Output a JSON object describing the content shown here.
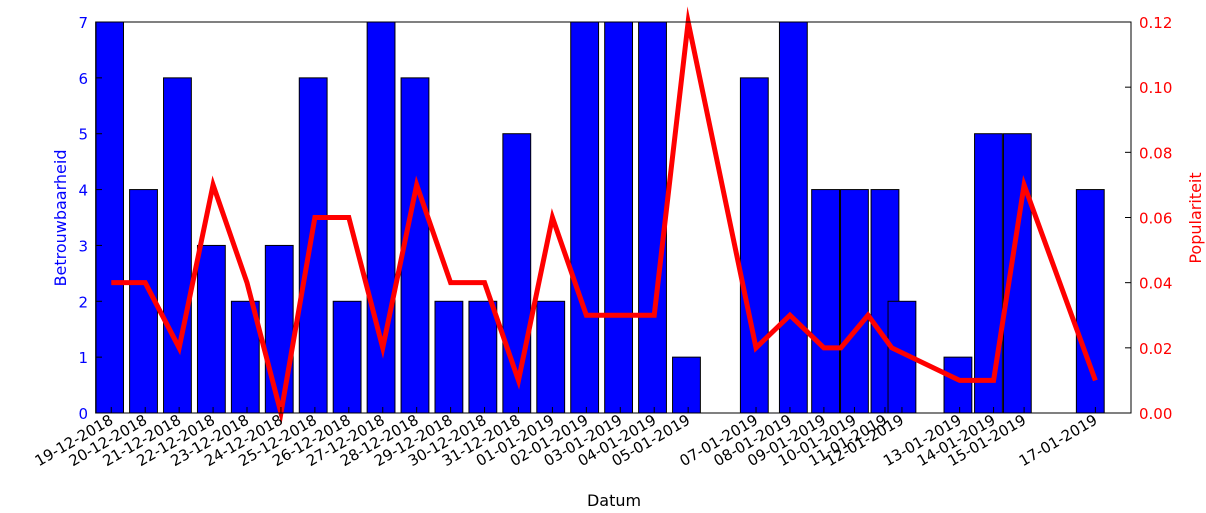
{
  "chart_data": {
    "type": "bar",
    "xlabel": "Datum",
    "x_ticks": [
      {
        "label": "19-12-2018",
        "x": 1
      },
      {
        "label": "20-12-2018",
        "x": 2
      },
      {
        "label": "21-12-2018",
        "x": 3
      },
      {
        "label": "22-12-2018",
        "x": 4
      },
      {
        "label": "23-12-2018",
        "x": 5
      },
      {
        "label": "24-12-2018",
        "x": 6
      },
      {
        "label": "25-12-2018",
        "x": 7
      },
      {
        "label": "26-12-2018",
        "x": 8
      },
      {
        "label": "27-12-2018",
        "x": 9
      },
      {
        "label": "28-12-2018",
        "x": 10
      },
      {
        "label": "29-12-2018",
        "x": 11
      },
      {
        "label": "30-12-2018",
        "x": 12
      },
      {
        "label": "31-12-2018",
        "x": 13
      },
      {
        "label": "01-01-2019",
        "x": 14
      },
      {
        "label": "02-01-2019",
        "x": 15
      },
      {
        "label": "03-01-2019",
        "x": 16
      },
      {
        "label": "04-01-2019",
        "x": 17
      },
      {
        "label": "05-01-2019",
        "x": 18
      },
      {
        "label": "07-01-2019",
        "x": 20
      },
      {
        "label": "08-01-2019",
        "x": 21
      },
      {
        "label": "09-01-2019",
        "x": 22
      },
      {
        "label": "10-01-2019",
        "x": 22.9
      },
      {
        "label": "11-01-2019",
        "x": 23.8
      },
      {
        "label": "12-01-2019",
        "x": 24.3
      },
      {
        "label": "13-01-2019",
        "x": 26
      },
      {
        "label": "14-01-2019",
        "x": 27
      },
      {
        "label": "15-01-2019",
        "x": 27.9
      },
      {
        "label": "17-01-2019",
        "x": 30
      }
    ],
    "xlim": [
      0.55,
      31.05
    ],
    "bar_width": 0.82,
    "series": [
      {
        "name": "Betrouwbaarheid",
        "kind": "bar",
        "axis": "left",
        "color": "#0000ff",
        "points": [
          {
            "x": 0.95,
            "y": 7
          },
          {
            "x": 1.95,
            "y": 4
          },
          {
            "x": 2.95,
            "y": 6
          },
          {
            "x": 3.95,
            "y": 3
          },
          {
            "x": 4.95,
            "y": 2
          },
          {
            "x": 5.95,
            "y": 3
          },
          {
            "x": 6.95,
            "y": 6
          },
          {
            "x": 7.95,
            "y": 2
          },
          {
            "x": 8.95,
            "y": 7
          },
          {
            "x": 9.95,
            "y": 6
          },
          {
            "x": 10.95,
            "y": 2
          },
          {
            "x": 11.95,
            "y": 2
          },
          {
            "x": 12.95,
            "y": 5
          },
          {
            "x": 13.95,
            "y": 2
          },
          {
            "x": 14.95,
            "y": 7
          },
          {
            "x": 15.95,
            "y": 7
          },
          {
            "x": 16.95,
            "y": 7
          },
          {
            "x": 17.95,
            "y": 1
          },
          {
            "x": 19.95,
            "y": 6
          },
          {
            "x": 21.1,
            "y": 7
          },
          {
            "x": 22.05,
            "y": 4
          },
          {
            "x": 22.9,
            "y": 4
          },
          {
            "x": 23.8,
            "y": 4
          },
          {
            "x": 24.3,
            "y": 2
          },
          {
            "x": 25.95,
            "y": 1
          },
          {
            "x": 26.85,
            "y": 5
          },
          {
            "x": 27.7,
            "y": 5
          },
          {
            "x": 29.85,
            "y": 4
          }
        ]
      },
      {
        "name": "Populariteit",
        "kind": "line",
        "axis": "right",
        "color": "#ff0000",
        "points": [
          {
            "x": 1,
            "y": 0.04
          },
          {
            "x": 2,
            "y": 0.04
          },
          {
            "x": 3,
            "y": 0.02
          },
          {
            "x": 4,
            "y": 0.07
          },
          {
            "x": 5,
            "y": 0.04
          },
          {
            "x": 6,
            "y": 0.0
          },
          {
            "x": 7,
            "y": 0.06
          },
          {
            "x": 8,
            "y": 0.06
          },
          {
            "x": 9,
            "y": 0.02
          },
          {
            "x": 10,
            "y": 0.07
          },
          {
            "x": 11,
            "y": 0.04
          },
          {
            "x": 12,
            "y": 0.04
          },
          {
            "x": 13,
            "y": 0.01
          },
          {
            "x": 14,
            "y": 0.06
          },
          {
            "x": 15,
            "y": 0.03
          },
          {
            "x": 16,
            "y": 0.03
          },
          {
            "x": 17,
            "y": 0.03
          },
          {
            "x": 18,
            "y": 0.12
          },
          {
            "x": 20,
            "y": 0.02
          },
          {
            "x": 21,
            "y": 0.03
          },
          {
            "x": 22,
            "y": 0.02
          },
          {
            "x": 22.5,
            "y": 0.02
          },
          {
            "x": 23.3,
            "y": 0.03
          },
          {
            "x": 24,
            "y": 0.02
          },
          {
            "x": 26,
            "y": 0.01
          },
          {
            "x": 27,
            "y": 0.01
          },
          {
            "x": 27.9,
            "y": 0.07
          },
          {
            "x": 30,
            "y": 0.01
          }
        ]
      }
    ],
    "y_left": {
      "label": "Betrouwbaarheid",
      "lim": [
        0,
        7
      ],
      "ticks": [
        "0",
        "1",
        "2",
        "3",
        "4",
        "5",
        "6",
        "7"
      ],
      "color": "#0000ff"
    },
    "y_right": {
      "label": "Populariteit",
      "lim": [
        0,
        0.12
      ],
      "ticks": [
        "0.00",
        "0.02",
        "0.04",
        "0.06",
        "0.08",
        "0.10",
        "0.12"
      ],
      "color": "#ff0000"
    },
    "grid": false,
    "legend": "none"
  }
}
